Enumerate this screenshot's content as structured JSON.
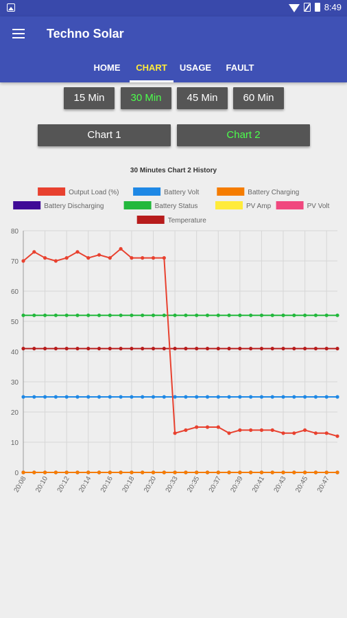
{
  "status_bar": {
    "time": "8:49"
  },
  "app": {
    "title": "Techno Solar"
  },
  "tabs": [
    {
      "label": "HOME",
      "active": false
    },
    {
      "label": "CHART",
      "active": true
    },
    {
      "label": "USAGE",
      "active": false
    },
    {
      "label": "FAULT",
      "active": false
    }
  ],
  "interval_buttons": [
    {
      "label": "15 Min",
      "selected": false
    },
    {
      "label": "30 Min",
      "selected": true
    },
    {
      "label": "45 Min",
      "selected": false
    },
    {
      "label": "60 Min",
      "selected": false
    }
  ],
  "chart_buttons": [
    {
      "label": "Chart 1",
      "selected": false
    },
    {
      "label": "Chart 2",
      "selected": true
    }
  ],
  "colors": {
    "app_bar": "#3f51b5",
    "status_bar": "#3949ab",
    "active_tab": "#ffeb3b",
    "selected_button_text": "#4cff4c"
  },
  "chart_data": {
    "type": "line",
    "title": "30 Minutes Chart 2 History",
    "legend_position": "top",
    "grid": true,
    "ylim": [
      0,
      80
    ],
    "yticks": [
      0,
      10,
      20,
      30,
      40,
      50,
      60,
      70,
      80
    ],
    "x_tick_labels": [
      "20:08",
      "20:10",
      "20:12",
      "20:14",
      "20:16",
      "20:18",
      "20:20",
      "20:33",
      "20:35",
      "20:37",
      "20:39",
      "20:41",
      "20:43",
      "20:45",
      "20:47"
    ],
    "point_count": 30,
    "series": [
      {
        "name": "Output Load (%)",
        "color": "#e8412f",
        "values": [
          70,
          73,
          71,
          70,
          71,
          73,
          71,
          72,
          71,
          74,
          71,
          71,
          71,
          71,
          13,
          14,
          15,
          15,
          15,
          13,
          14,
          14,
          14,
          14,
          13,
          13,
          14,
          13,
          13,
          12
        ]
      },
      {
        "name": "Battery Volt",
        "color": "#1e88e5",
        "values": [
          25,
          25,
          25,
          25,
          25,
          25,
          25,
          25,
          25,
          25,
          25,
          25,
          25,
          25,
          25,
          25,
          25,
          25,
          25,
          25,
          25,
          25,
          25,
          25,
          25,
          25,
          25,
          25,
          25,
          25
        ]
      },
      {
        "name": "Battery Charging",
        "color": "#f57c00",
        "values": [
          0,
          0,
          0,
          0,
          0,
          0,
          0,
          0,
          0,
          0,
          0,
          0,
          0,
          0,
          0,
          0,
          0,
          0,
          0,
          0,
          0,
          0,
          0,
          0,
          0,
          0,
          0,
          0,
          0,
          0
        ]
      },
      {
        "name": "Battery Discharging",
        "color": "#3f0a96",
        "values": [
          0,
          0,
          0,
          0,
          0,
          0,
          0,
          0,
          0,
          0,
          0,
          0,
          0,
          0,
          0,
          0,
          0,
          0,
          0,
          0,
          0,
          0,
          0,
          0,
          0,
          0,
          0,
          0,
          0,
          0
        ]
      },
      {
        "name": "Battery Status",
        "color": "#22b83c",
        "values": [
          52,
          52,
          52,
          52,
          52,
          52,
          52,
          52,
          52,
          52,
          52,
          52,
          52,
          52,
          52,
          52,
          52,
          52,
          52,
          52,
          52,
          52,
          52,
          52,
          52,
          52,
          52,
          52,
          52,
          52
        ]
      },
      {
        "name": "PV Amp",
        "color": "#ffeb3b",
        "values": [
          0,
          0,
          0,
          0,
          0,
          0,
          0,
          0,
          0,
          0,
          0,
          0,
          0,
          0,
          0,
          0,
          0,
          0,
          0,
          0,
          0,
          0,
          0,
          0,
          0,
          0,
          0,
          0,
          0,
          0
        ]
      },
      {
        "name": "PV Volt",
        "color": "#f0487e",
        "values": [
          0,
          0,
          0,
          0,
          0,
          0,
          0,
          0,
          0,
          0,
          0,
          0,
          0,
          0,
          0,
          0,
          0,
          0,
          0,
          0,
          0,
          0,
          0,
          0,
          0,
          0,
          0,
          0,
          0,
          0
        ]
      },
      {
        "name": "Temperature",
        "color": "#b71c1c",
        "values": [
          41,
          41,
          41,
          41,
          41,
          41,
          41,
          41,
          41,
          41,
          41,
          41,
          41,
          41,
          41,
          41,
          41,
          41,
          41,
          41,
          41,
          41,
          41,
          41,
          41,
          41,
          41,
          41,
          41,
          41
        ]
      }
    ]
  }
}
